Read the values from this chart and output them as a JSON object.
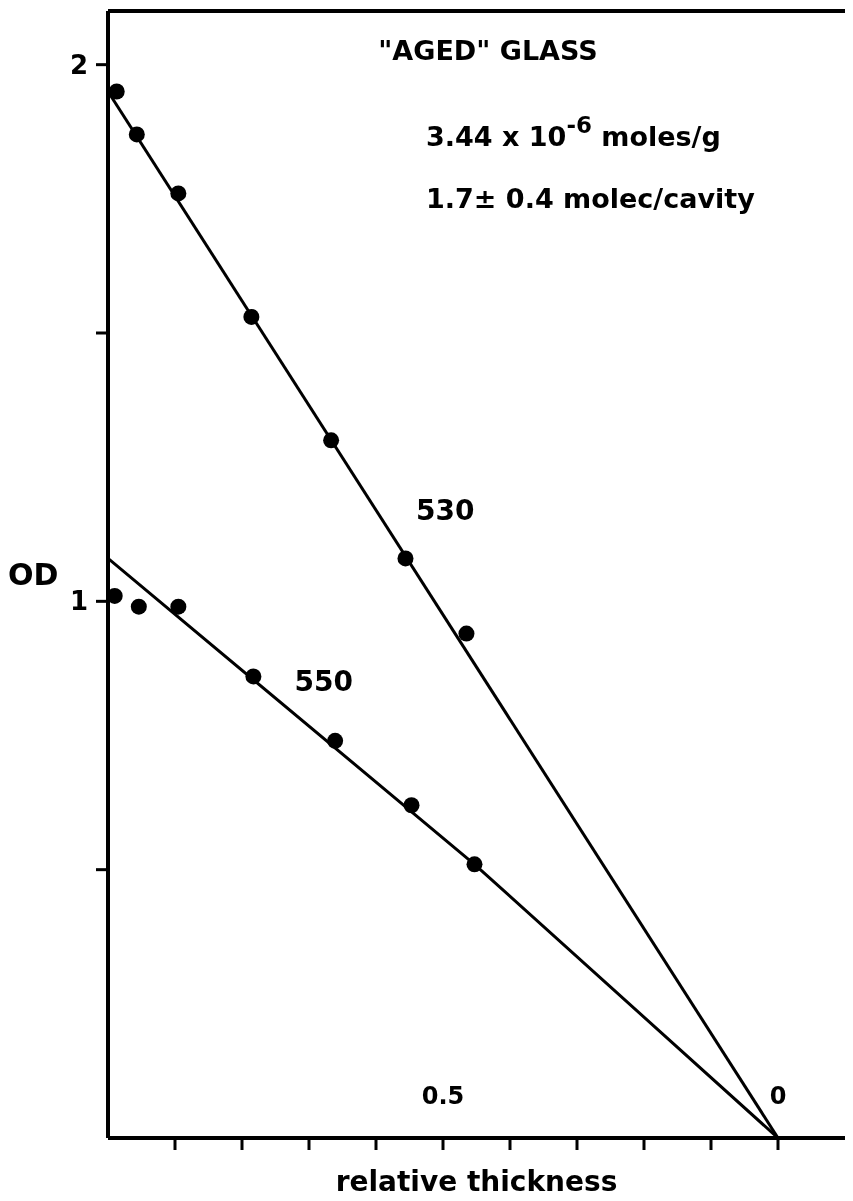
{
  "chart_data": {
    "type": "scatter",
    "title": "\"AGED\"   GLASS",
    "subtitle": "3.44 x 10$^{-6}$ moles/g",
    "xlabel": "relative thickness",
    "ylabel": "OD",
    "annotations": [
      "1.7± 0.4 molec/cavity"
    ],
    "xlim": [
      1,
      -0.1
    ],
    "ylim": [
      0,
      2.1
    ],
    "xticks": [
      {
        "value": 0.9,
        "label": null
      },
      {
        "value": 0.8,
        "label": null
      },
      {
        "value": 0.7,
        "label": null
      },
      {
        "value": 0.6,
        "label": null
      },
      0.5,
      {
        "value": 0.4,
        "label": null
      },
      {
        "value": 0.3,
        "label": null
      },
      {
        "value": 0.2,
        "label": null
      },
      {
        "value": 0.1,
        "label": null
      },
      0
    ],
    "yticks": [
      {
        "value": 0.5,
        "label": null
      },
      1,
      {
        "value": 1.5,
        "label": null
      },
      2
    ],
    "series": [
      {
        "color": "#000000",
        "x": [
          0.987,
          0.957,
          0.895,
          0.786,
          0.667,
          0.556,
          0.465
        ],
        "values": [
          1.95,
          1.87,
          1.76,
          1.53,
          1.3,
          1.08,
          0.94
        ]
      },
      {
        "color": "#000000",
        "x": [
          0.99,
          0.954,
          0.895,
          0.783,
          0.661,
          0.547,
          0.453
        ],
        "values": [
          1.01,
          0.99,
          0.99,
          0.86,
          0.74,
          0.62,
          0.51
        ]
      },
      {
        "type": "line",
        "name": "530",
        "color": "#000000",
        "marker": "none",
        "x": [
          1,
          0
        ],
        "values": [
          1.95,
          0
        ]
      },
      {
        "type": "line",
        "name": "550",
        "color": "#000000",
        "marker": "none",
        "x": [
          1,
          0.453,
          0
        ],
        "values": [
          1.08,
          0.51,
          0
        ]
      }
    ],
    "marker": "circle",
    "line_style": "solid",
    "grid": false,
    "legend": false
  }
}
